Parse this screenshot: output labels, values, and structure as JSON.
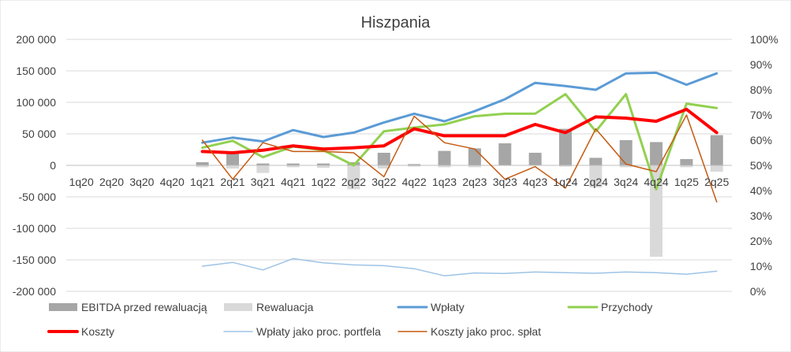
{
  "chart_data": {
    "type": "bar+line",
    "title": "Hiszpania",
    "categories": [
      "1q20",
      "2q20",
      "3q20",
      "4q20",
      "1q21",
      "2q21",
      "3q21",
      "4q21",
      "1q22",
      "2q22",
      "3q22",
      "4q22",
      "1q23",
      "2q23",
      "3q23",
      "4q23",
      "1q24",
      "2q24",
      "3q24",
      "4q24",
      "1q25",
      "2q25"
    ],
    "y_left": {
      "min": -200000,
      "max": 200000,
      "step": 50000,
      "tick_labels": [
        "-200 000",
        "-150 000",
        "-100 000",
        "-50 000",
        "0",
        "50 000",
        "100 000",
        "150 000",
        "200 000"
      ]
    },
    "y_right": {
      "min": 0,
      "max": 100,
      "step": 10,
      "tick_labels": [
        "0%",
        "10%",
        "20%",
        "30%",
        "40%",
        "50%",
        "60%",
        "70%",
        "80%",
        "90%",
        "100%"
      ]
    },
    "legend_position": "bottom",
    "series": [
      {
        "name": "EBITDA przed rewaluacją",
        "kind": "bar",
        "axis": "left",
        "color": "#a6a6a6",
        "values": [
          null,
          null,
          null,
          null,
          5000,
          20000,
          3000,
          3000,
          3000,
          5000,
          20000,
          2000,
          23000,
          27000,
          35000,
          20000,
          58000,
          12000,
          40000,
          37000,
          10000,
          48000
        ]
      },
      {
        "name": "Rewaluacja",
        "kind": "bar",
        "axis": "left",
        "color": "#d9d9d9",
        "values": [
          null,
          null,
          null,
          null,
          -3000,
          -5000,
          -12000,
          -3000,
          -4000,
          -38000,
          -5000,
          -2000,
          -3000,
          -3000,
          0,
          0,
          -2000,
          -35000,
          -3000,
          -145000,
          -3000,
          -10000
        ]
      },
      {
        "name": "Wpłaty",
        "kind": "line",
        "axis": "left",
        "color": "#5b9bd5",
        "width": 3,
        "values": [
          null,
          null,
          null,
          null,
          36000,
          44000,
          38000,
          56000,
          45000,
          52000,
          68000,
          82000,
          70000,
          86000,
          105000,
          131000,
          126000,
          120000,
          146000,
          147000,
          128000,
          146000
        ]
      },
      {
        "name": "Przychody",
        "kind": "line",
        "axis": "left",
        "color": "#92d050",
        "width": 3,
        "values": [
          null,
          null,
          null,
          null,
          28000,
          39000,
          13000,
          30000,
          24000,
          0,
          54000,
          60000,
          65000,
          78000,
          82000,
          82000,
          113000,
          54000,
          113000,
          -38000,
          98000,
          91000
        ]
      },
      {
        "name": "Koszty",
        "kind": "line",
        "axis": "left",
        "color": "#ff0000",
        "width": 4,
        "values": [
          null,
          null,
          null,
          null,
          22000,
          20000,
          24000,
          31000,
          26000,
          28000,
          31000,
          58000,
          47000,
          47000,
          47000,
          65000,
          52000,
          77000,
          75000,
          70000,
          89000,
          52000
        ]
      },
      {
        "name": "Wpłaty jako proc. portfela",
        "kind": "line",
        "axis": "right",
        "color": "#9dc3e6",
        "width": 1.5,
        "values": [
          null,
          null,
          null,
          null,
          10,
          11.5,
          8.5,
          13,
          11.3,
          10.5,
          10.2,
          9,
          6.2,
          7.3,
          7.1,
          7.7,
          7.4,
          7.2,
          7.7,
          7.4,
          6.8,
          8
        ]
      },
      {
        "name": "Koszty jako proc. spłat",
        "kind": "line",
        "axis": "right",
        "color": "#c55a11",
        "width": 1.5,
        "values": [
          null,
          null,
          null,
          null,
          60,
          44.5,
          59,
          55.5,
          55.5,
          55,
          45.5,
          69.5,
          59,
          56.5,
          44.5,
          49.5,
          41,
          64.5,
          50.5,
          47.5,
          70,
          35.5
        ]
      }
    ]
  }
}
